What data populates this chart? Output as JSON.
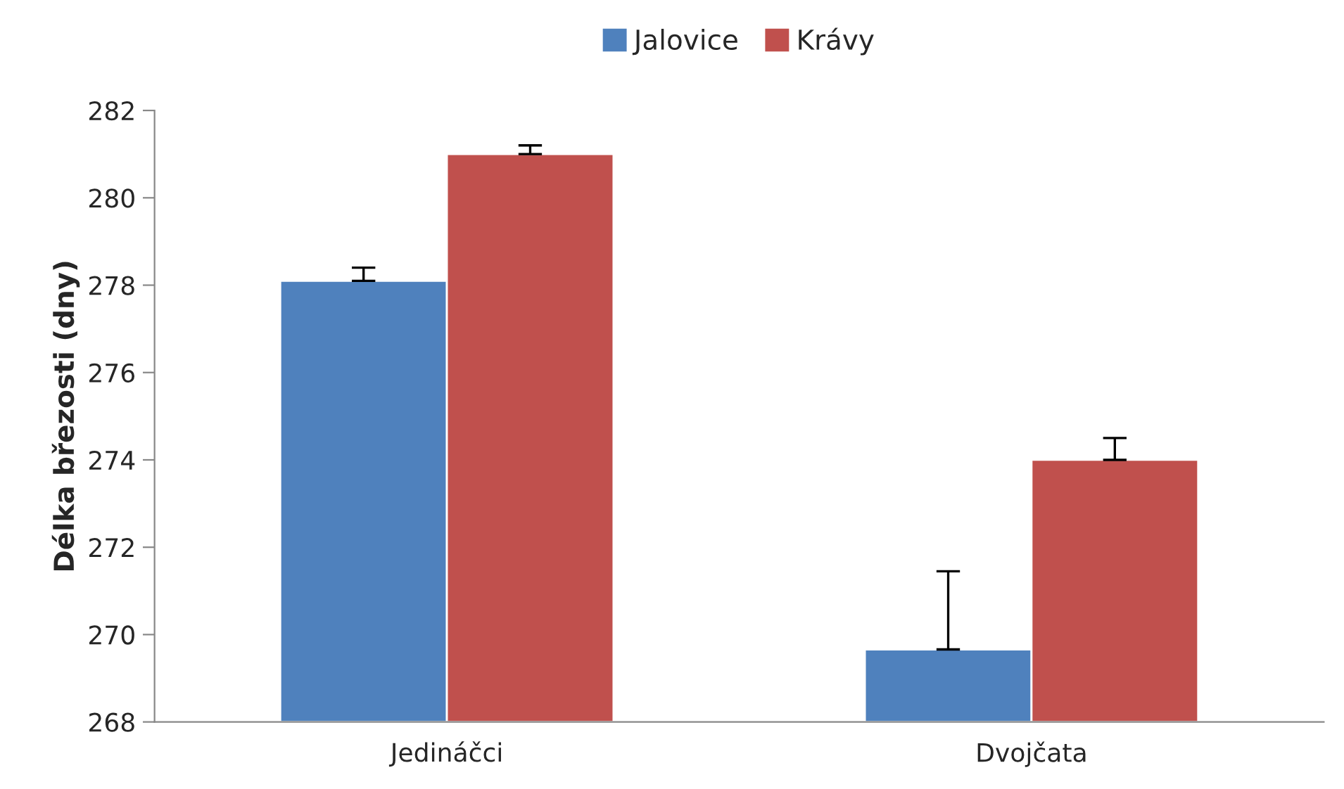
{
  "chart_data": {
    "type": "bar",
    "ylabel": "Délka březosti (dny)",
    "categories": [
      "Jedináčci",
      "Dvojčata"
    ],
    "series": [
      {
        "name": "Jalovice",
        "color": "#4f81bd",
        "values": [
          278.1,
          269.66
        ],
        "errors": [
          [
            278.1,
            278.4
          ],
          [
            269.66,
            271.45
          ]
        ]
      },
      {
        "name": "Krávy",
        "color": "#c0504d",
        "values": [
          281.0,
          274.0
        ],
        "errors": [
          [
            281.0,
            281.2
          ],
          [
            274.0,
            274.5
          ]
        ]
      }
    ],
    "ylim": [
      268,
      282
    ],
    "yticks": [
      268,
      270,
      272,
      274,
      276,
      278,
      280,
      282
    ],
    "grid": false,
    "legend": "top"
  }
}
